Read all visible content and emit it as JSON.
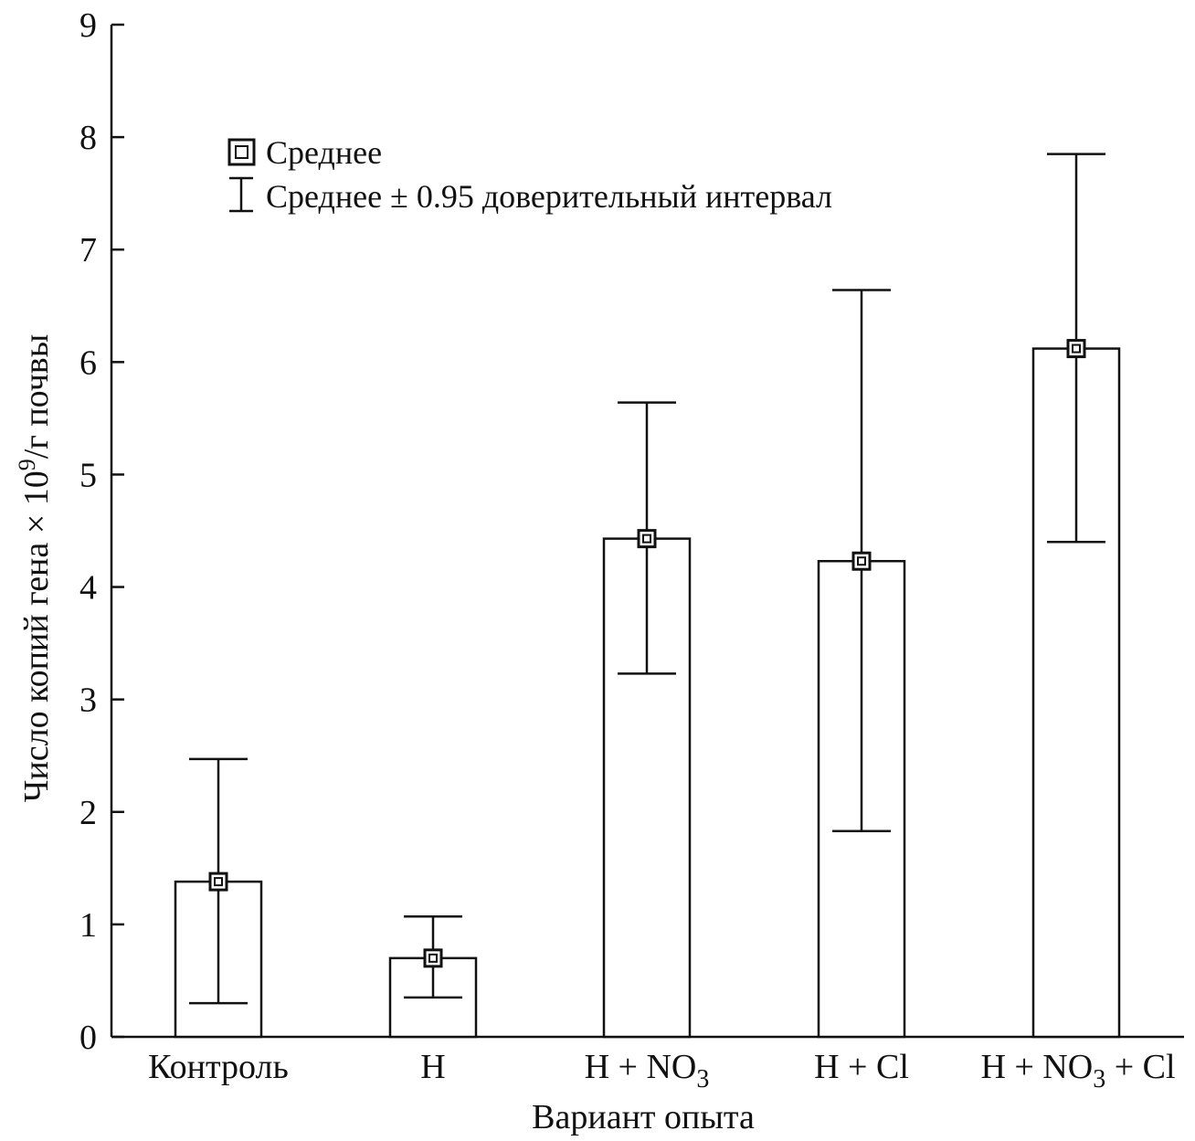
{
  "chart_data": {
    "type": "bar",
    "xlabel": "Вариант опыта",
    "ylabel_parts": [
      "Число копий гена × 10",
      "9",
      "/г почвы"
    ],
    "ylim": [
      0,
      9
    ],
    "yticks": [
      "0",
      "1",
      "2",
      "3",
      "4",
      "5",
      "6",
      "7",
      "8",
      "9"
    ],
    "categories": [
      {
        "parts": [
          {
            "t": "Контроль"
          }
        ]
      },
      {
        "parts": [
          {
            "t": "H"
          }
        ]
      },
      {
        "parts": [
          {
            "t": "H + NO"
          },
          {
            "t": "3",
            "sub": true
          }
        ]
      },
      {
        "parts": [
          {
            "t": "H + Cl"
          }
        ]
      },
      {
        "parts": [
          {
            "t": "H + NO"
          },
          {
            "t": "3",
            "sub": true
          },
          {
            "t": " + Cl"
          }
        ]
      }
    ],
    "values": [
      1.38,
      0.7,
      4.43,
      4.23,
      6.12
    ],
    "ci_low": [
      0.3,
      0.35,
      3.23,
      1.83,
      4.4
    ],
    "ci_high": [
      2.47,
      1.07,
      5.64,
      6.64,
      7.85
    ],
    "legend": {
      "mean": "Среднее",
      "ci": "Среднее ± 0.95 доверительный интервал"
    },
    "grid": false
  }
}
